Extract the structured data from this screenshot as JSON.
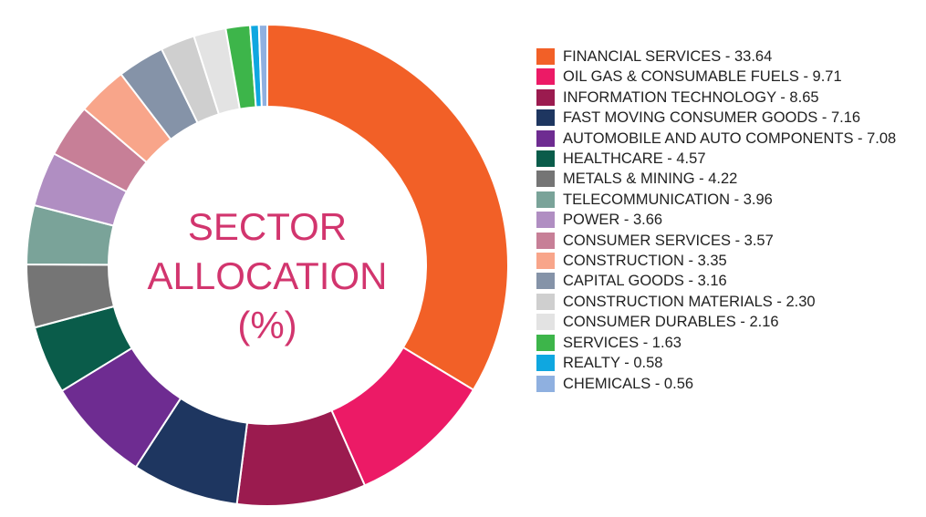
{
  "chart_data": {
    "type": "donut",
    "title": "SECTOR ALLOCATION (%)",
    "categories": [
      "FINANCIAL SERVICES - 33.64",
      "OIL GAS & CONSUMABLE FUELS - 9.71",
      "INFORMATION TECHNOLOGY - 8.65",
      "FAST MOVING CONSUMER GOODS - 7.16",
      "AUTOMOBILE AND AUTO COMPONENTS - 7.08",
      "HEALTHCARE - 4.57",
      "METALS & MINING - 4.22",
      "TELECOMMUNICATION - 3.96",
      "POWER - 3.66",
      "CONSUMER SERVICES - 3.57",
      "CONSTRUCTION - 3.35",
      "CAPITAL GOODS - 3.16",
      "CONSTRUCTION MATERIALS - 2.30",
      "CONSUMER DURABLES - 2.16",
      "SERVICES - 1.63",
      "REALTY - 0.58",
      "CHEMICALS - 0.56"
    ],
    "values": [
      33.64,
      9.71,
      8.65,
      7.16,
      7.08,
      4.57,
      4.22,
      3.96,
      3.66,
      3.57,
      3.35,
      3.16,
      2.3,
      2.16,
      1.63,
      0.58,
      0.56
    ],
    "colors": [
      "#f26027",
      "#ec1a66",
      "#9b1b4f",
      "#1e3660",
      "#6e2c91",
      "#0a5c4a",
      "#757575",
      "#7aa399",
      "#b08ec2",
      "#c77f97",
      "#f8a58a",
      "#8593a8",
      "#cfcfcf",
      "#e3e3e3",
      "#3db54a",
      "#0fa7e0",
      "#8fb0e0"
    ]
  }
}
